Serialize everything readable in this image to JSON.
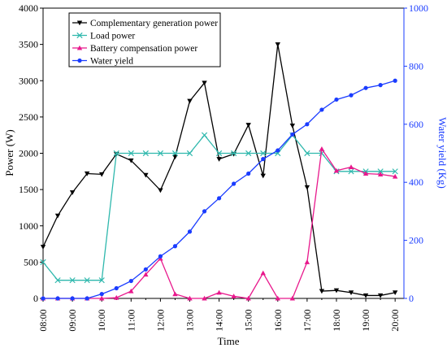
{
  "chart_data": {
    "type": "line",
    "title": "",
    "xlabel": "Time",
    "ylabel_left": "Power (W)",
    "ylabel_right": "Water yield (Kg)",
    "x_ticks": [
      "08:00",
      "09:00",
      "10:00",
      "11:00",
      "12:00",
      "13:00",
      "14:00",
      "15:00",
      "16:00",
      "17:00",
      "18:00",
      "19:00",
      "20:00"
    ],
    "xlim": [
      8,
      20.3
    ],
    "ylim_left": [
      0,
      4000
    ],
    "ylim_right": [
      0,
      1000
    ],
    "y_ticks_left": [
      0,
      500,
      1000,
      1500,
      2000,
      2500,
      3000,
      3500,
      4000
    ],
    "y_ticks_right": [
      0,
      200,
      400,
      600,
      800,
      1000
    ],
    "grid": false,
    "legend_position": "top-left",
    "colors": {
      "left_axis": "#000000",
      "right_axis": "#1a3cff"
    },
    "series": [
      {
        "name": "Complementary generation power",
        "axis": "left",
        "color": "#000000",
        "marker": "triangle-down",
        "x": [
          8,
          8.5,
          9,
          9.5,
          10,
          10.5,
          11,
          11.5,
          12,
          12.5,
          13,
          13.5,
          14,
          14.5,
          15,
          15.5,
          16,
          16.5,
          17,
          17.5,
          18,
          18.5,
          19,
          19.5,
          20
        ],
        "values": [
          710,
          1140,
          1460,
          1720,
          1710,
          1990,
          1900,
          1700,
          1490,
          1950,
          2720,
          2970,
          1920,
          1990,
          2390,
          1690,
          3500,
          2380,
          1530,
          100,
          110,
          80,
          40,
          40,
          80
        ]
      },
      {
        "name": "Load power",
        "axis": "left",
        "color": "#2fb8ad",
        "marker": "x",
        "x": [
          8,
          8.5,
          9,
          9.5,
          10,
          10.5,
          11,
          11.5,
          12,
          12.5,
          13,
          13.5,
          14,
          14.5,
          15,
          15.5,
          16,
          16.5,
          17,
          17.5,
          18,
          18.5,
          19,
          19.5,
          20
        ],
        "values": [
          500,
          250,
          250,
          250,
          250,
          2000,
          2000,
          2000,
          2000,
          2000,
          2000,
          2250,
          2000,
          2000,
          2000,
          2000,
          2000,
          2250,
          2000,
          2000,
          1750,
          1750,
          1750,
          1750,
          1750
        ]
      },
      {
        "name": "Battery compensation power",
        "axis": "left",
        "color": "#e8188c",
        "marker": "triangle-up",
        "x": [
          8,
          8.5,
          9,
          9.5,
          10,
          10.5,
          11,
          11.5,
          12,
          12.5,
          13,
          13.5,
          14,
          14.5,
          15,
          15.5,
          16,
          16.5,
          17,
          17.5,
          18,
          18.5,
          19,
          19.5,
          20
        ],
        "values": [
          0,
          0,
          0,
          0,
          0,
          10,
          100,
          330,
          550,
          60,
          0,
          0,
          80,
          30,
          0,
          350,
          0,
          0,
          500,
          2060,
          1760,
          1810,
          1720,
          1710,
          1680
        ]
      },
      {
        "name": "Water yield",
        "axis": "right",
        "color": "#1a3cff",
        "marker": "circle",
        "x": [
          8,
          8.5,
          9,
          9.5,
          10,
          10.5,
          11,
          11.5,
          12,
          12.5,
          13,
          13.5,
          14,
          14.5,
          15,
          15.5,
          16,
          16.5,
          17,
          17.5,
          18,
          18.5,
          19,
          19.5,
          20
        ],
        "values": [
          0,
          0,
          0,
          0,
          15,
          35,
          60,
          100,
          145,
          180,
          230,
          300,
          345,
          395,
          430,
          480,
          510,
          565,
          600,
          650,
          685,
          700,
          725,
          735,
          750
        ]
      }
    ]
  }
}
